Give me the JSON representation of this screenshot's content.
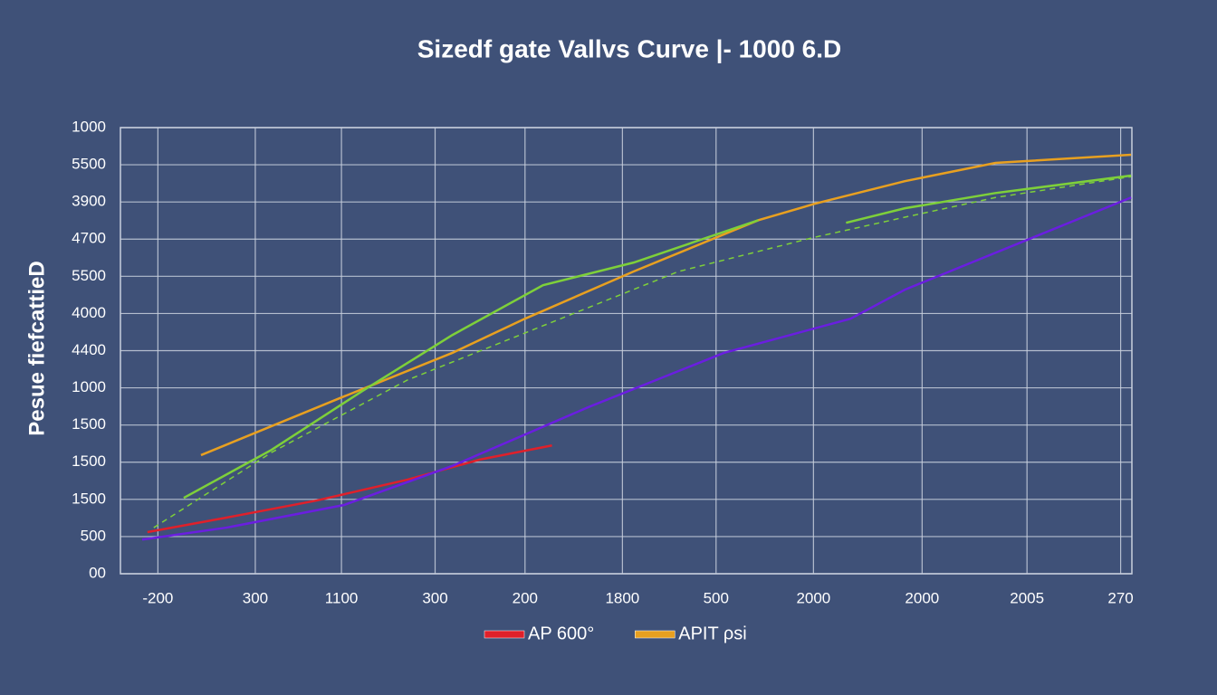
{
  "chart_data": {
    "type": "line",
    "title": "Sizedf gate Vallvs Curve |- 1000 6.D",
    "y_label": "Pesue fiefcattieD",
    "xlim": [
      0,
      27
    ],
    "ylim": [
      0,
      12
    ],
    "grid": true,
    "xticks": [
      {
        "value": 1,
        "label": "-200"
      },
      {
        "value": 3.6,
        "label": "300"
      },
      {
        "value": 5.9,
        "label": "1100"
      },
      {
        "value": 8.4,
        "label": "300"
      },
      {
        "value": 10.8,
        "label": "200"
      },
      {
        "value": 13.4,
        "label": "1800"
      },
      {
        "value": 15.9,
        "label": "500"
      },
      {
        "value": 18.5,
        "label": "2000"
      },
      {
        "value": 21.4,
        "label": "2000"
      },
      {
        "value": 24.2,
        "label": "2005"
      },
      {
        "value": 26.7,
        "label": "270"
      }
    ],
    "yticks": [
      {
        "value": 0,
        "label": "00"
      },
      {
        "value": 1,
        "label": "500"
      },
      {
        "value": 2,
        "label": "1500"
      },
      {
        "value": 3,
        "label": "1500"
      },
      {
        "value": 4,
        "label": "1500"
      },
      {
        "value": 5,
        "label": "1000"
      },
      {
        "value": 6,
        "label": "4400"
      },
      {
        "value": 7,
        "label": "4000"
      },
      {
        "value": 8,
        "label": "5500"
      },
      {
        "value": 9,
        "label": "4700"
      },
      {
        "value": 10,
        "label": "3900"
      },
      {
        "value": 11,
        "label": "5500"
      },
      {
        "value": 12,
        "label": "1000"
      }
    ],
    "series": [
      {
        "name": "AP 600°",
        "color": "#e0202a",
        "x": [
          0.72,
          2.83,
          5.24,
          7.66,
          9.59,
          11.52
        ],
        "values": [
          1.12,
          1.51,
          1.97,
          2.53,
          3.07,
          3.45
        ]
      },
      {
        "name": "APIT ρsi",
        "color": "#e8a020",
        "x": [
          2.15,
          5.85,
          8.86,
          10.8,
          13.7,
          17.03,
          18.53,
          20.94,
          23.36,
          26.98
        ],
        "values": [
          3.19,
          4.72,
          5.94,
          6.86,
          8.13,
          9.51,
          9.95,
          10.56,
          11.05,
          11.27
        ]
      },
      {
        "color": "#6a1ee0",
        "x": [
          0.58,
          2.83,
          5.97,
          8.86,
          12.49,
          16.11,
          19.49,
          20.94,
          26.98
        ],
        "values": [
          0.92,
          1.24,
          1.85,
          2.9,
          4.48,
          5.94,
          6.86,
          7.64,
          10.12
        ]
      },
      {
        "color": "#7ed03a",
        "x": [
          1.69,
          4.03,
          6.45,
          8.86,
          11.28,
          13.7,
          17.03,
          null,
          19.37,
          20.94,
          23.36,
          26.98
        ],
        "values": [
          2.04,
          3.33,
          4.91,
          6.42,
          7.76,
          8.37,
          9.51,
          null,
          9.44,
          9.83,
          10.24,
          10.71
        ]
      },
      {
        "color": "#7ed03a",
        "dashed": true,
        "x": [
          0.89,
          4.03,
          7.66,
          11.28,
          14.9,
          18.53,
          20.94,
          23.36,
          26.98
        ],
        "values": [
          1.24,
          3.26,
          5.21,
          6.67,
          8.13,
          9.05,
          9.59,
          10.12,
          10.68
        ]
      }
    ],
    "legend": "bottom"
  }
}
